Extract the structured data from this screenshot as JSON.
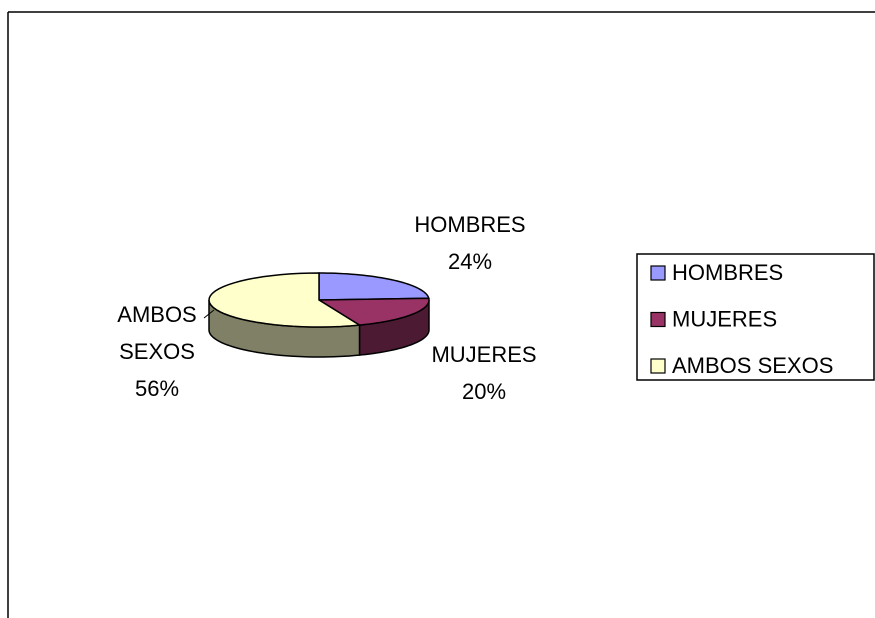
{
  "chart_data": {
    "type": "pie",
    "categories": [
      "HOMBRES",
      "MUJERES",
      "AMBOS SEXOS"
    ],
    "values": [
      24,
      20,
      56
    ],
    "value_labels": [
      "24%",
      "20%",
      "56%"
    ],
    "colors": [
      "#9999ff",
      "#993366",
      "#ffffcc"
    ],
    "legend": "right"
  }
}
